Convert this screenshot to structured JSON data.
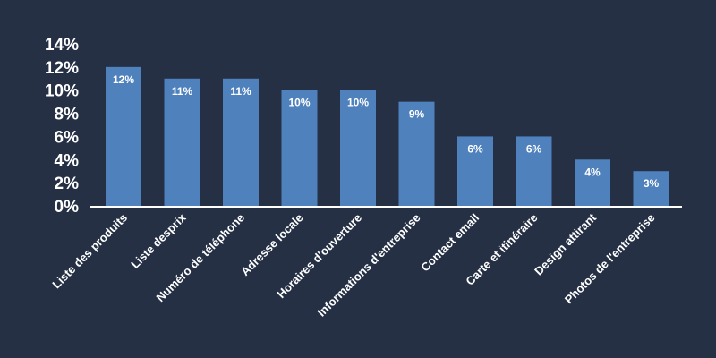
{
  "chart_data": {
    "type": "bar",
    "title": "",
    "xlabel": "",
    "ylabel": "",
    "ylim": [
      0,
      14
    ],
    "grid": false,
    "legend": "none",
    "y_ticks": [
      "0%",
      "2%",
      "4%",
      "6%",
      "8%",
      "10%",
      "12%",
      "14%"
    ],
    "y_tick_values": [
      0,
      2,
      4,
      6,
      8,
      10,
      12,
      14
    ],
    "categories": [
      "Liste des produits",
      "Liste desprix",
      "Numéro de téléphone",
      "Adresse locale",
      "Horaires d'ouverture",
      "Informations d'entreprise",
      "Contact email",
      "Carte et itinéraire",
      "Design attirant",
      "Photos de l'entreprise"
    ],
    "values": [
      12,
      11,
      11,
      10,
      10,
      9,
      6,
      6,
      4,
      3
    ],
    "data_labels": [
      "12%",
      "11%",
      "11%",
      "10%",
      "10%",
      "9%",
      "6%",
      "6%",
      "4%",
      "3%"
    ]
  },
  "colors": {
    "background": "#253045",
    "bar": "#4f81bd",
    "axis": "#ffffff",
    "text": "#ffffff"
  }
}
